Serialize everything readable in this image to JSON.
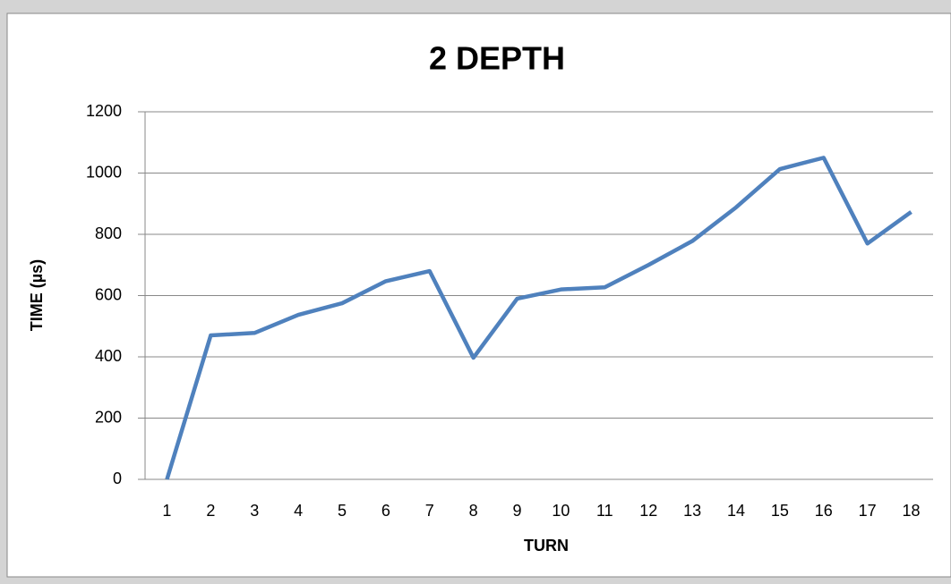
{
  "chart_data": {
    "type": "line",
    "title": "2 DEPTH",
    "x_label": "TURN",
    "y_label": "TIME (µs)",
    "categories": [
      "1",
      "2",
      "3",
      "4",
      "5",
      "6",
      "7",
      "8",
      "9",
      "10",
      "11",
      "12",
      "13",
      "14",
      "15",
      "16",
      "17",
      "18"
    ],
    "series": [
      {
        "name": "TIME",
        "color": "#4f81bd",
        "values": [
          0,
          470,
          478,
          537,
          575,
          647,
          680,
          397,
          590,
          620,
          627,
          700,
          778,
          888,
          1013,
          1050,
          770,
          873
        ]
      }
    ],
    "ylim": [
      0,
      1200
    ],
    "yticks": [
      0,
      200,
      400,
      600,
      800,
      1000,
      1200
    ],
    "grid": true
  }
}
